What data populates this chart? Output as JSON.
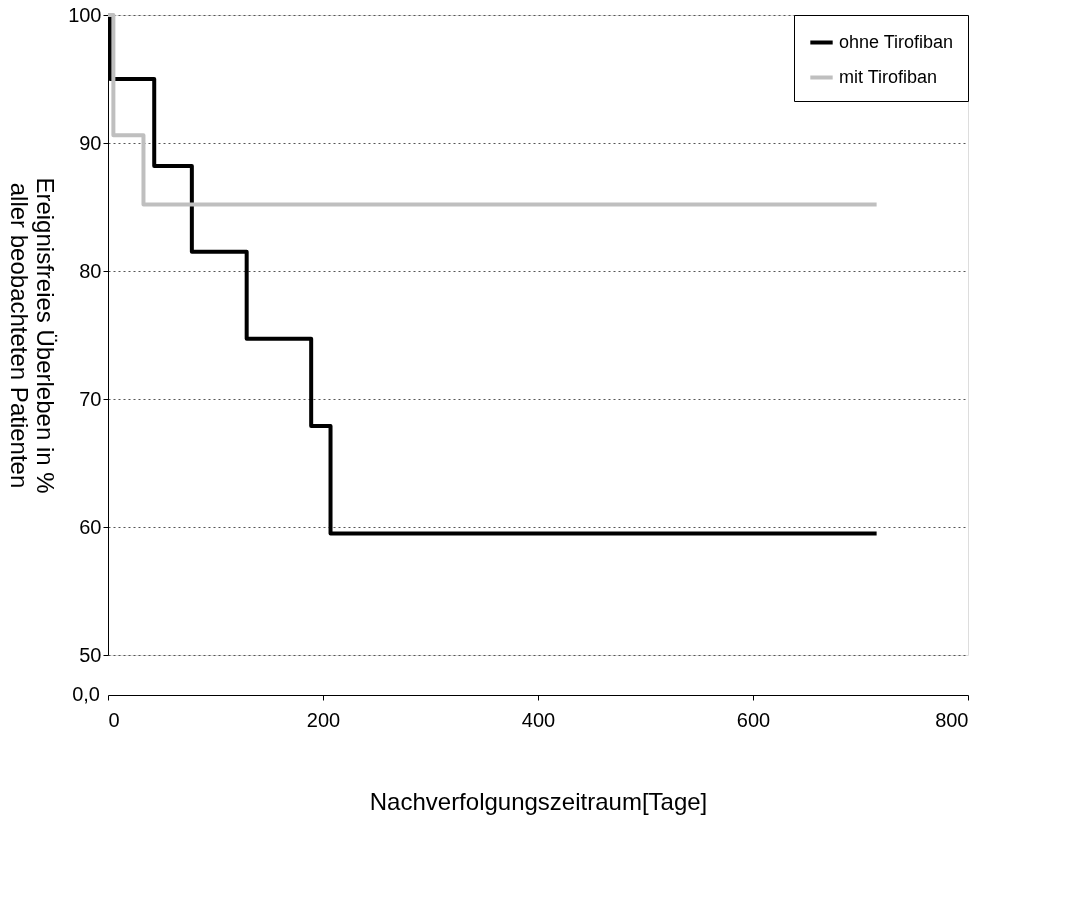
{
  "chart_data": {
    "type": "step",
    "xlabel": "Nachverfolgungszeitraum[Tage]",
    "ylabel": "Ereignisfreies Überleben in %\naller beobachteten Patienten",
    "series": [
      {
        "name": "ohne Tirofiban",
        "color": "#000000",
        "x": [
          0,
          2,
          43,
          78,
          129,
          189,
          207,
          715
        ],
        "values": [
          100,
          95,
          88.2,
          81.5,
          74.7,
          67.9,
          59.5,
          59.5
        ]
      },
      {
        "name": "mit Tirofiban",
        "color": "#bfbfbf",
        "x": [
          0,
          5,
          33,
          715
        ],
        "values": [
          100,
          90.6,
          85.2,
          85.2
        ]
      }
    ],
    "xlim": [
      0,
      800
    ],
    "xticks": [
      0,
      200,
      400,
      600,
      800
    ],
    "ylim": [
      50,
      100
    ],
    "yticks": [
      50,
      60,
      70,
      80,
      90,
      100
    ],
    "annotations": [
      "0,0"
    ],
    "grid": "y",
    "legend": "top right",
    "line_style": "solid"
  }
}
